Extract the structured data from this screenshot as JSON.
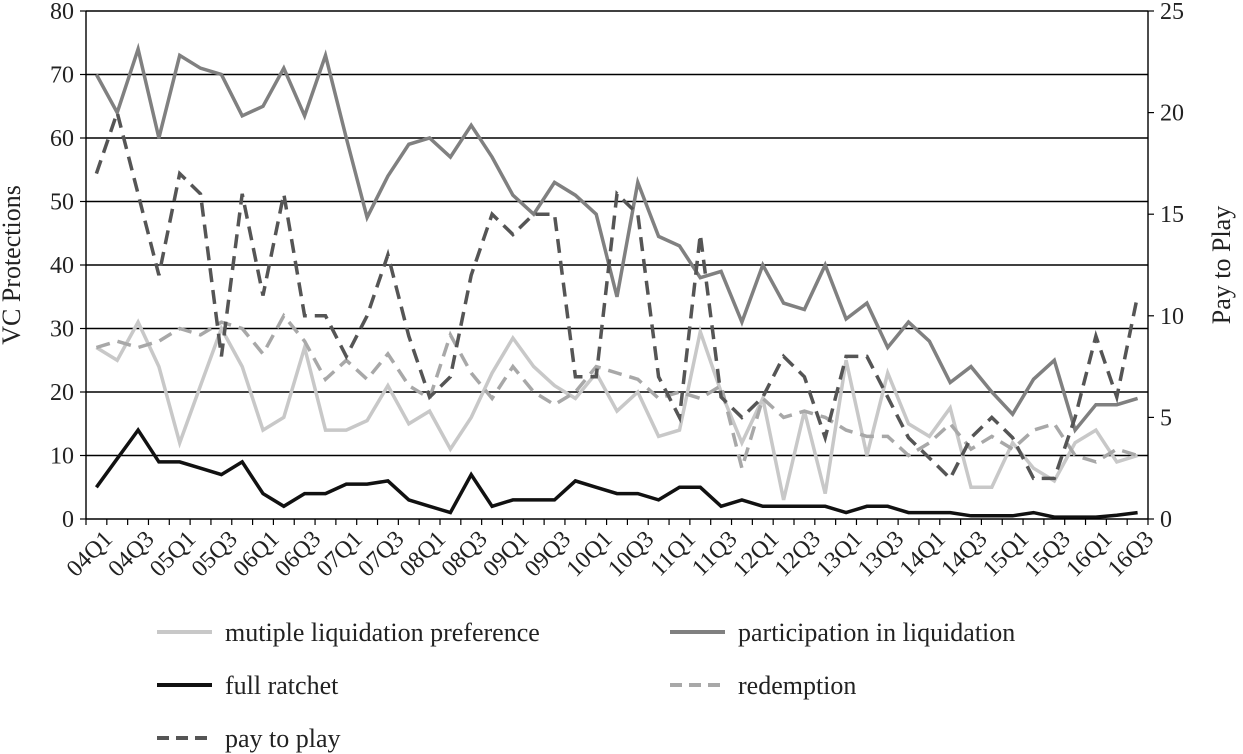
{
  "chart_data": {
    "type": "line",
    "title": "",
    "xlabel": "",
    "ylabel": "VC Protections",
    "y2label": "Pay to Play",
    "ylim": [
      0,
      80
    ],
    "y2lim": [
      0,
      25
    ],
    "yticks": [
      0,
      10,
      20,
      30,
      40,
      50,
      60,
      70,
      80
    ],
    "y2ticks": [
      0,
      5,
      10,
      15,
      20,
      25
    ],
    "grid": true,
    "legend_position": "bottom",
    "categories": [
      "04Q1",
      "04Q2",
      "04Q3",
      "04Q4",
      "05Q1",
      "05Q2",
      "05Q3",
      "05Q4",
      "06Q1",
      "06Q2",
      "06Q3",
      "06Q4",
      "07Q1",
      "07Q2",
      "07Q3",
      "07Q4",
      "08Q1",
      "08Q2",
      "08Q3",
      "08Q4",
      "09Q1",
      "09Q2",
      "09Q3",
      "09Q4",
      "10Q1",
      "10Q2",
      "10Q3",
      "10Q4",
      "11Q1",
      "11Q2",
      "11Q3",
      "11Q4",
      "12Q1",
      "12Q2",
      "12Q3",
      "12Q4",
      "13Q1",
      "13Q2",
      "13Q3",
      "13Q4",
      "14Q1",
      "14Q2",
      "14Q3",
      "14Q4",
      "15Q1",
      "15Q2",
      "15Q3",
      "15Q4",
      "16Q1",
      "16Q2",
      "16Q3"
    ],
    "tick_labels": [
      "04Q1",
      "04Q3",
      "05Q1",
      "05Q3",
      "06Q1",
      "06Q3",
      "07Q1",
      "07Q3",
      "08Q1",
      "08Q3",
      "09Q1",
      "09Q3",
      "10Q1",
      "10Q3",
      "11Q1",
      "11Q3",
      "12Q1",
      "12Q3",
      "13Q1",
      "13Q3",
      "14Q1",
      "14Q3",
      "15Q1",
      "15Q3",
      "16Q1",
      "16Q3"
    ],
    "series": [
      {
        "name": "mutiple liquidation preference",
        "axis": "left",
        "color": "#c8c8c8",
        "dash": "solid",
        "values": [
          27,
          25,
          31,
          24,
          12,
          21,
          30,
          24,
          14,
          16,
          27,
          14,
          14,
          15.5,
          21,
          15,
          17,
          11,
          16,
          23,
          28.5,
          24,
          21,
          19,
          23,
          17,
          20,
          13,
          14,
          29.5,
          20,
          12,
          19,
          3,
          17,
          4,
          25,
          10,
          23,
          15,
          13,
          17.5,
          5,
          5,
          12,
          8,
          6,
          12,
          14,
          9,
          10
        ]
      },
      {
        "name": "participation in liquidation",
        "axis": "left",
        "color": "#808080",
        "dash": "solid",
        "values": [
          70,
          64,
          74,
          60,
          73,
          71,
          70,
          63.5,
          65,
          71,
          63.5,
          73,
          60,
          47.5,
          54,
          59,
          60,
          57,
          62,
          57,
          51,
          48,
          53,
          51,
          48,
          35,
          53,
          44.5,
          43,
          38,
          39,
          31,
          40,
          34,
          33,
          40,
          31.5,
          34,
          27,
          31,
          28,
          21.5,
          24,
          20,
          16.5,
          22,
          25,
          14,
          18,
          18,
          19
        ]
      },
      {
        "name": "full ratchet",
        "axis": "left",
        "color": "#111111",
        "dash": "solid",
        "values": [
          5,
          9.5,
          14,
          9,
          9,
          8,
          7,
          9,
          4,
          2,
          4,
          4,
          5.5,
          5.5,
          6,
          3,
          2,
          1,
          7,
          2,
          3,
          3,
          3,
          6,
          5,
          4,
          4,
          3,
          5,
          5,
          2,
          3,
          2,
          2,
          2,
          2,
          1,
          2,
          2,
          1,
          1,
          1,
          0.5,
          0.5,
          0.5,
          1,
          0.3,
          0.3,
          0.3,
          0.6,
          1
        ]
      },
      {
        "name": "redemption",
        "axis": "left",
        "color": "#a8a8a8",
        "dash": "dashed",
        "values": [
          27,
          28,
          27,
          28,
          30,
          29,
          31,
          30,
          26,
          32,
          28,
          22,
          25,
          22,
          26,
          21,
          19,
          29,
          23,
          19,
          24,
          20,
          18,
          20,
          24,
          23,
          22,
          19,
          20,
          19,
          21,
          8,
          19,
          16,
          17,
          16,
          14,
          13,
          13,
          10,
          12,
          15,
          11,
          13,
          11,
          14,
          15,
          10,
          9,
          11,
          10
        ]
      },
      {
        "name": "pay to play",
        "axis": "right",
        "color": "#555555",
        "dash": "dashed",
        "values": [
          17,
          20,
          16,
          12,
          17,
          16,
          8,
          16,
          11,
          16,
          10,
          10,
          8,
          10,
          13,
          9,
          6,
          7,
          12,
          15,
          14,
          15,
          15,
          7,
          7,
          16,
          15,
          7,
          5,
          14,
          6,
          5,
          6,
          8,
          7,
          4,
          8,
          8,
          6,
          4,
          3,
          2,
          4,
          5,
          4,
          2,
          2,
          5,
          9,
          6,
          11
        ]
      }
    ]
  }
}
